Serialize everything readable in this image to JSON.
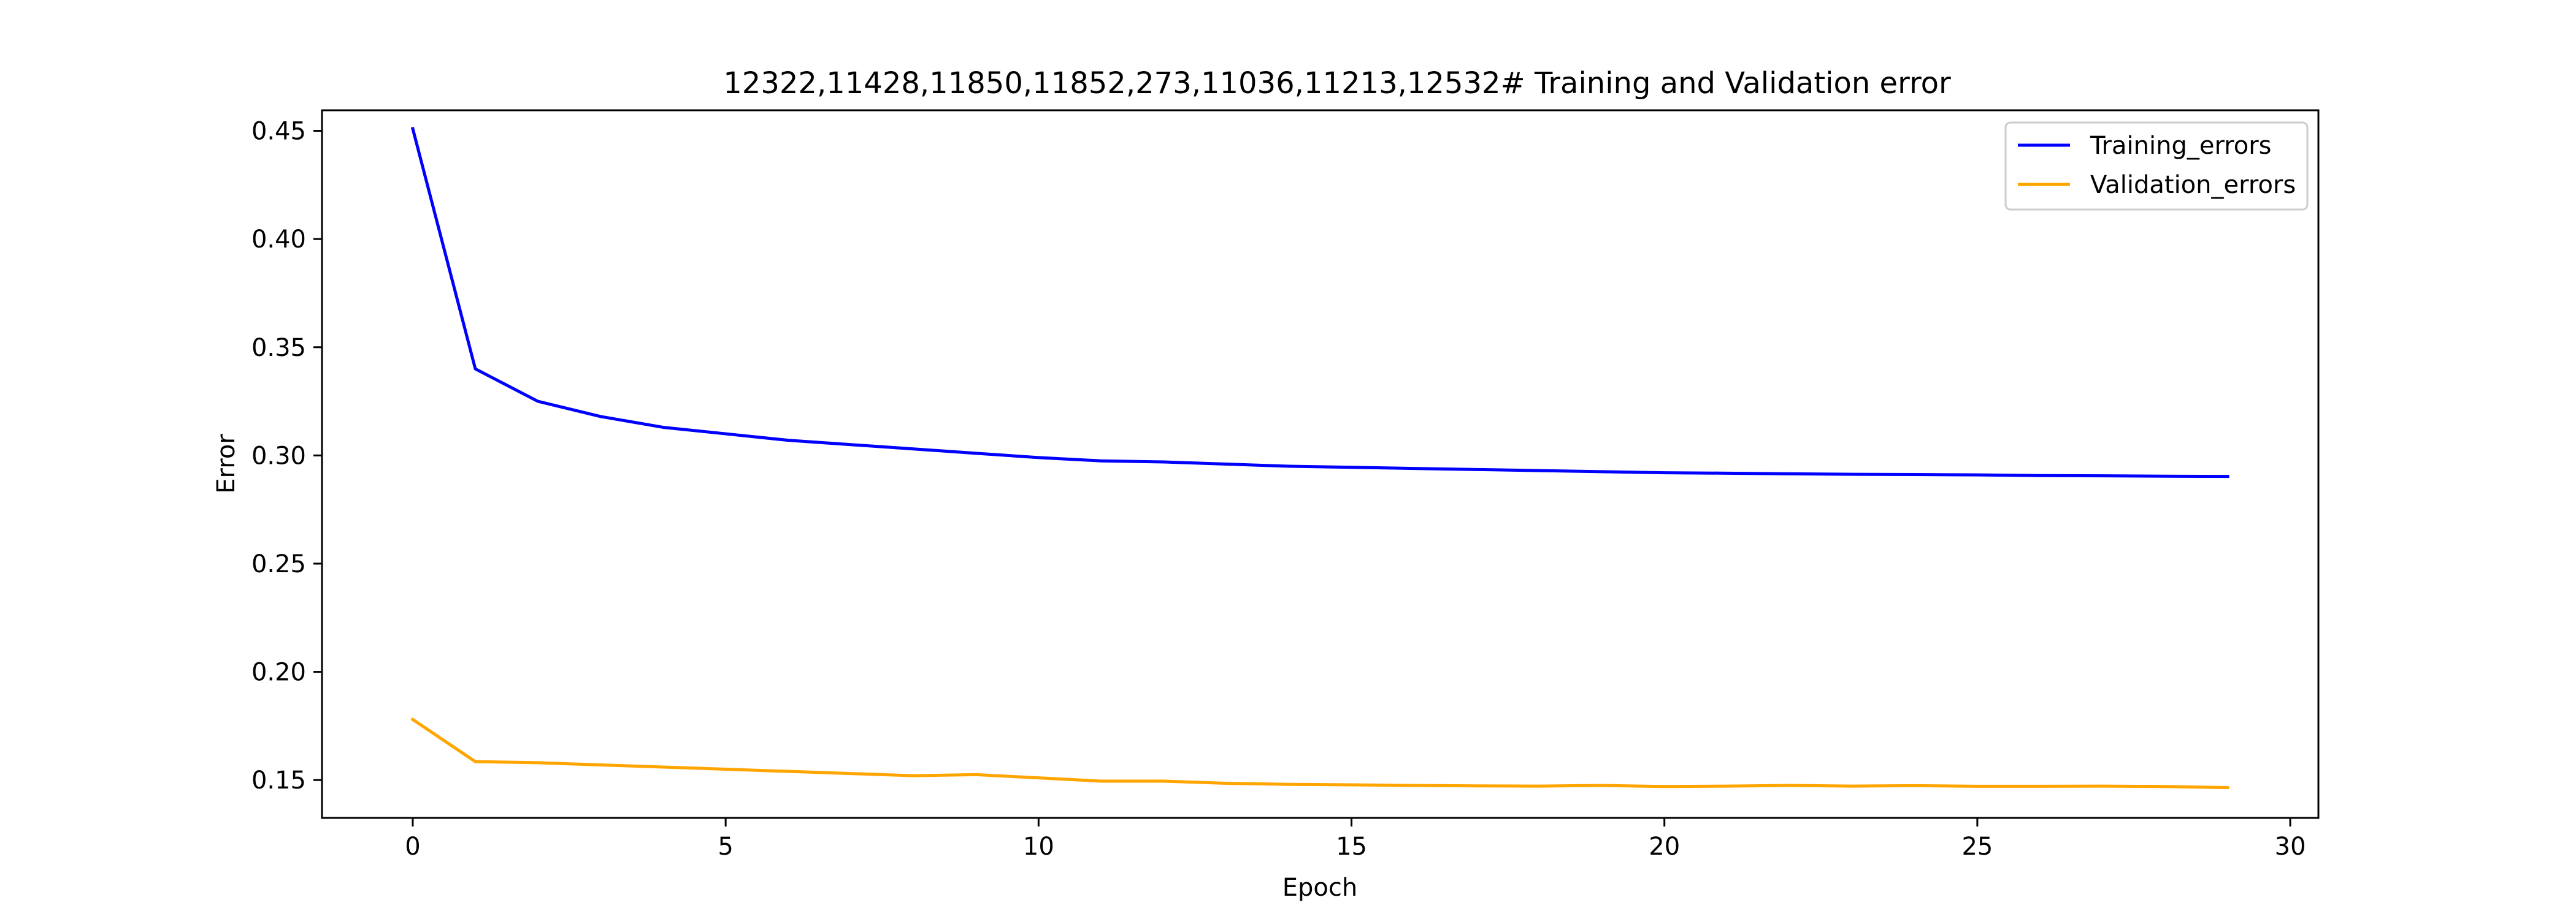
{
  "chart_data": {
    "type": "line",
    "title": "12322,11428,11850,11852,273,11036,11213,12532# Training and Validation error",
    "xlabel": "Epoch",
    "ylabel": "Error",
    "xlim": [
      -1.45,
      30.45
    ],
    "ylim": [
      0.1325,
      0.4595
    ],
    "xticks": [
      0,
      5,
      10,
      15,
      20,
      25,
      30
    ],
    "yticks": [
      0.15,
      0.2,
      0.25,
      0.3,
      0.35,
      0.4,
      0.45
    ],
    "xtick_labels": [
      "0",
      "5",
      "10",
      "15",
      "20",
      "25",
      "30"
    ],
    "ytick_labels": [
      "0.15",
      "0.20",
      "0.25",
      "0.30",
      "0.35",
      "0.40",
      "0.45"
    ],
    "grid": false,
    "legend_position": "top-right",
    "x": [
      0,
      1,
      2,
      3,
      4,
      5,
      6,
      7,
      8,
      9,
      10,
      11,
      12,
      13,
      14,
      15,
      16,
      17,
      18,
      19,
      20,
      21,
      22,
      23,
      24,
      25,
      26,
      27,
      28,
      29
    ],
    "series": [
      {
        "name": "Training_errors",
        "color": "#0000ff",
        "values": [
          0.451,
          0.34,
          0.325,
          0.318,
          0.313,
          0.31,
          0.307,
          0.305,
          0.303,
          0.301,
          0.299,
          0.2975,
          0.297,
          0.296,
          0.295,
          0.2945,
          0.294,
          0.2935,
          0.293,
          0.2925,
          0.292,
          0.2918,
          0.2915,
          0.2913,
          0.2912,
          0.291,
          0.2907,
          0.2906,
          0.2904,
          0.2903
        ]
      },
      {
        "name": "Validation_errors",
        "color": "#ffa500",
        "values": [
          0.178,
          0.1585,
          0.158,
          0.157,
          0.156,
          0.155,
          0.154,
          0.153,
          0.152,
          0.1525,
          0.151,
          0.1495,
          0.1495,
          0.1485,
          0.148,
          0.1478,
          0.1475,
          0.1473,
          0.1472,
          0.1475,
          0.147,
          0.1472,
          0.1475,
          0.1472,
          0.1474,
          0.1471,
          0.1471,
          0.1472,
          0.147,
          0.1465
        ]
      }
    ]
  }
}
